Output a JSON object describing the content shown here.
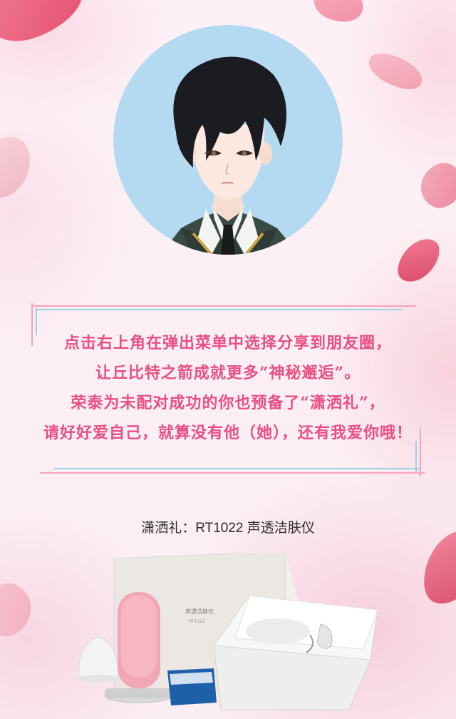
{
  "avatar": {
    "icon": "boy-avatar-icon",
    "bg_color": "#b3daf1"
  },
  "message": {
    "lines": [
      "点击右上角在弹出菜单中选择分享到朋友圈，",
      "让丘比特之箭成就更多“神秘邂逅”。",
      "荣泰为未配对成功的你也预备了“潇洒礼”，",
      "请好好爱自己，就算没有他（她），还有我爱你哦！"
    ],
    "color": "#e94f82"
  },
  "product": {
    "label": "潇洒礼：RT1022 声透洁肤仪",
    "box_lid_text": "声透洁肤仪",
    "box_lid_subtext": "RT1022"
  }
}
